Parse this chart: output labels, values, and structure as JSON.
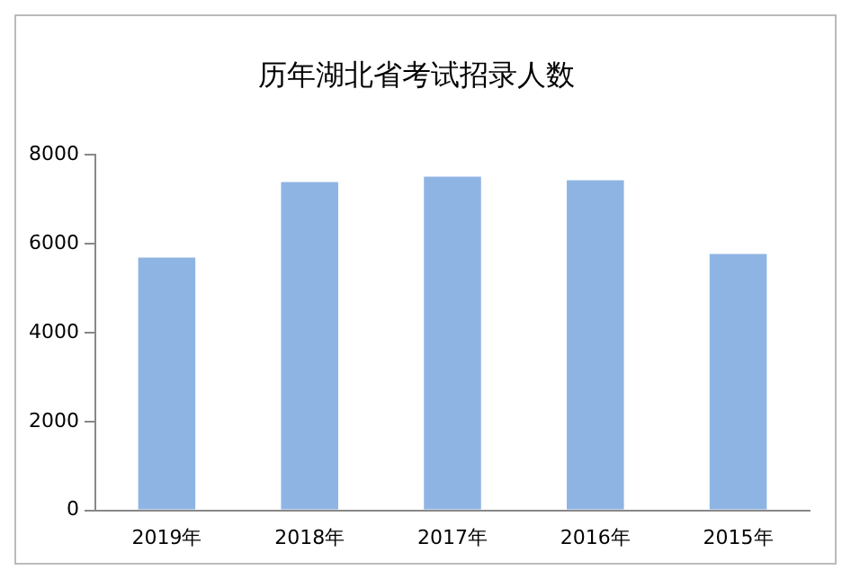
{
  "chart_data": {
    "type": "bar",
    "title": "历年湖北省考试招录人数",
    "categories": [
      "2019年",
      "2018年",
      "2017年",
      "2016年",
      "2015年"
    ],
    "values": [
      5690,
      7390,
      7510,
      7430,
      5770
    ],
    "color": "#8eb4e3",
    "ylim": [
      0,
      8000
    ],
    "yticks": [
      0,
      2000,
      4000,
      6000,
      8000
    ],
    "grid": false,
    "legend": false
  }
}
